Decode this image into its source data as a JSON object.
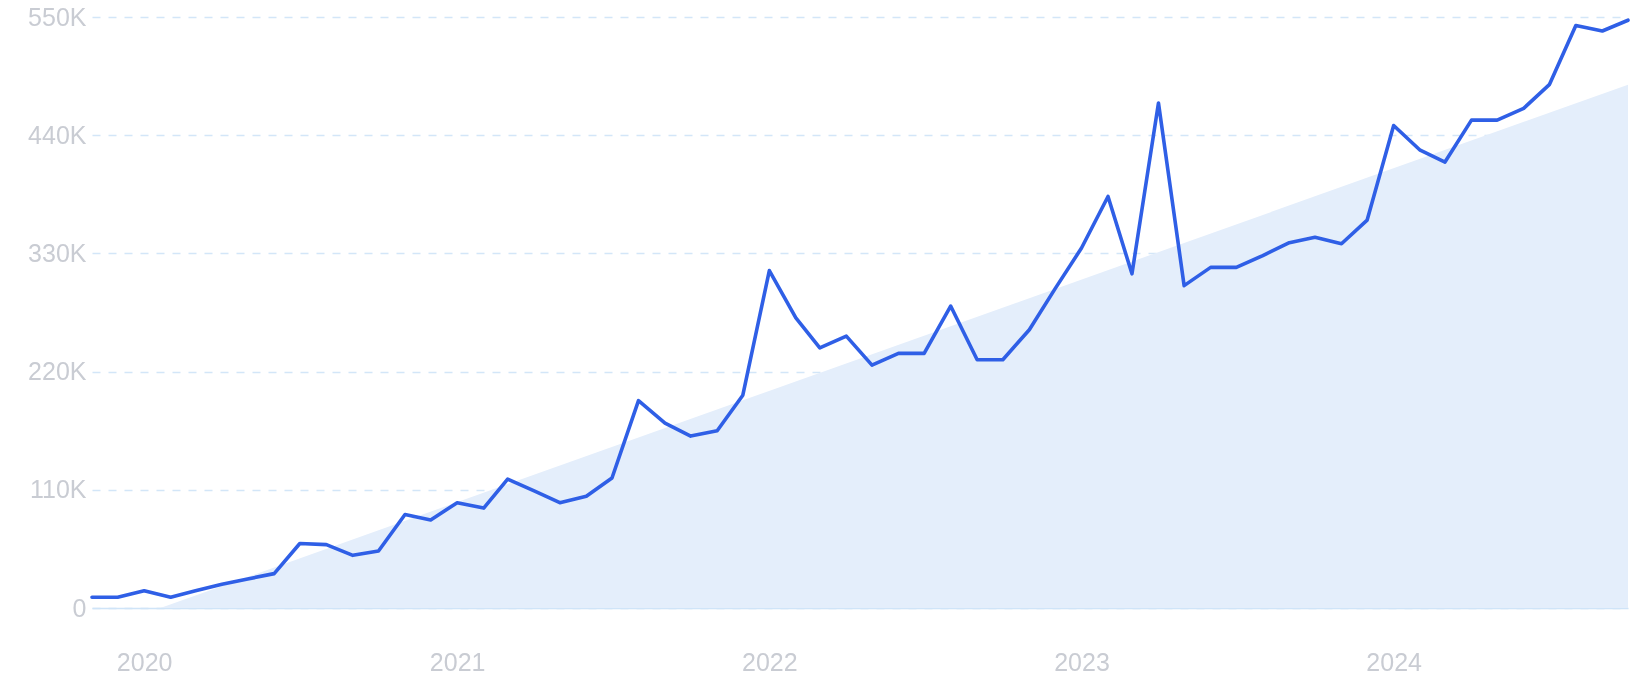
{
  "chart_data": {
    "type": "line",
    "grid": "y",
    "xlim": [
      "2019-11",
      "2024-10"
    ],
    "xticks": [
      "2020",
      "2021",
      "2022",
      "2023",
      "2024"
    ],
    "ylim": [
      0,
      550000
    ],
    "yticks": [
      0,
      {
        "value": 110000,
        "label": "110K"
      },
      {
        "value": 220000,
        "label": "220K"
      },
      {
        "value": 330000,
        "label": "330K"
      },
      {
        "value": 440000,
        "label": "440K"
      },
      {
        "value": 550000,
        "label": "550K"
      }
    ],
    "series": [
      {
        "type": "area",
        "color": "#e4eefb",
        "x": [
          "2020-01-20",
          "2024-10"
        ],
        "values": [
          0,
          487000
        ]
      },
      {
        "type": "line",
        "color": "#2f5fe6",
        "x": [
          "2019-11",
          "2019-12",
          "2020-01",
          "2020-02",
          "2020-03",
          "2020-04",
          "2020-05",
          "2020-06",
          "2020-07",
          "2020-08",
          "2020-09",
          "2020-10",
          "2020-11",
          "2020-12",
          "2021-01",
          "2021-02",
          "2021-03",
          "2021-04",
          "2021-05",
          "2021-06",
          "2021-07",
          "2021-08",
          "2021-09",
          "2021-10",
          "2021-11",
          "2021-12",
          "2022-01",
          "2022-02",
          "2022-03",
          "2022-04",
          "2022-05",
          "2022-06",
          "2022-07",
          "2022-08",
          "2022-09",
          "2022-10",
          "2022-11",
          "2022-12",
          "2023-01",
          "2023-02",
          "2023-03",
          "2023-04",
          "2023-05",
          "2023-06",
          "2023-07",
          "2023-08",
          "2023-09",
          "2023-10",
          "2023-11",
          "2023-12",
          "2024-01",
          "2024-02",
          "2024-03",
          "2024-04",
          "2024-05",
          "2024-06",
          "2024-07",
          "2024-08",
          "2024-09",
          "2024-10"
        ],
        "values": [
          10000,
          10000,
          16000,
          10000,
          16000,
          22000,
          27000,
          32000,
          60000,
          59000,
          49000,
          53000,
          87000,
          82000,
          98000,
          93000,
          120000,
          109000,
          98000,
          104000,
          121000,
          193000,
          172000,
          160000,
          165000,
          198000,
          314000,
          270000,
          242000,
          253000,
          226000,
          237000,
          237000,
          281000,
          231000,
          231000,
          259000,
          297000,
          335000,
          383000,
          311000,
          470000,
          300000,
          317000,
          317000,
          328000,
          340000,
          345000,
          339000,
          361000,
          449000,
          426000,
          415000,
          454000,
          454000,
          465000,
          487000,
          542000,
          537000,
          547000
        ]
      }
    ]
  }
}
